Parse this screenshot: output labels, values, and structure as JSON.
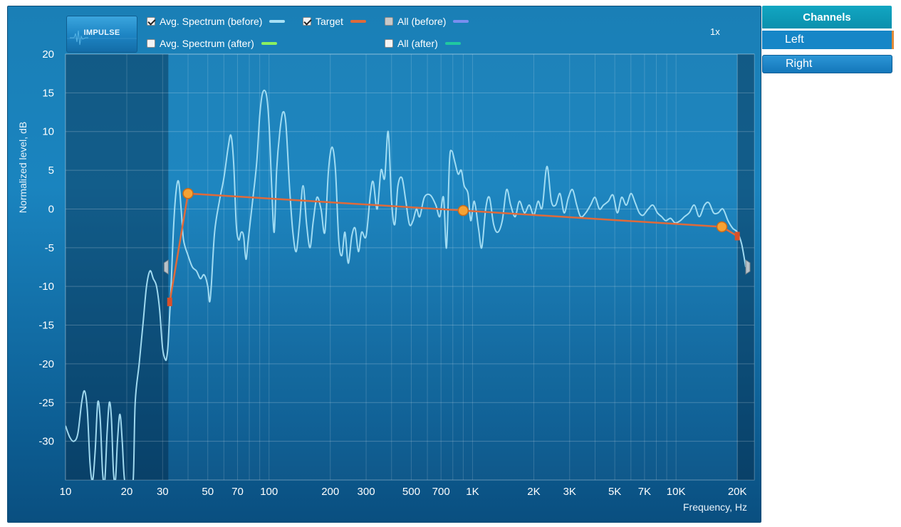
{
  "toolbar": {
    "impulse_label": "IMPULSE",
    "zoom": "1x"
  },
  "legend": [
    {
      "label": "Avg. Spectrum (before)",
      "checked": true,
      "state": "checked",
      "color": "#a8e0f5"
    },
    {
      "label": "Target",
      "checked": true,
      "state": "checked",
      "color": "#e06a3a"
    },
    {
      "label": "All (before)",
      "checked": false,
      "state": "partial",
      "color": "#7a8ef0"
    },
    {
      "label": "Avg. Spectrum (after)",
      "checked": false,
      "state": "unchecked",
      "color": "#8af060"
    },
    {
      "label": "All (after)",
      "checked": false,
      "state": "unchecked",
      "color": "#20c8a0"
    }
  ],
  "sidebar": {
    "header": "Channels",
    "channels": [
      {
        "label": "Left",
        "selected": true
      },
      {
        "label": "Right",
        "selected": false
      }
    ]
  },
  "chart_data": {
    "type": "line",
    "xlabel": "Frequency, Hz",
    "ylabel": "Normalized level, dB",
    "xscale": "log",
    "xlim": [
      10,
      22000
    ],
    "ylim": [
      -35,
      20
    ],
    "x_ticks": [
      10,
      20,
      30,
      50,
      70,
      100,
      200,
      300,
      500,
      700,
      1000,
      2000,
      3000,
      5000,
      7000,
      10000,
      20000
    ],
    "x_tick_labels": [
      "10",
      "20",
      "30",
      "50",
      "70",
      "100",
      "200",
      "300",
      "500",
      "700",
      "1K",
      "2K",
      "3K",
      "5K",
      "7K",
      "10K",
      "20K"
    ],
    "y_ticks": [
      20,
      15,
      10,
      5,
      0,
      -5,
      -10,
      -15,
      -20,
      -25,
      -30
    ],
    "y_tick_labels": [
      "20",
      "15",
      "10",
      "5",
      "0",
      "-5",
      "-10",
      "-15",
      "-20",
      "-25",
      "-30"
    ],
    "grid": true,
    "excluded_range_hz": [
      10,
      32
    ],
    "excluded_upper_hz": 20000,
    "series": [
      {
        "name": "Avg. Spectrum (before)",
        "color": "#a8e0f5",
        "points": [
          [
            10,
            -28
          ],
          [
            10.5,
            -29.5
          ],
          [
            11,
            -30
          ],
          [
            11.5,
            -29
          ],
          [
            12,
            -25
          ],
          [
            12.4,
            -23.5
          ],
          [
            12.8,
            -26
          ],
          [
            13.2,
            -33
          ],
          [
            13.6,
            -35
          ],
          [
            14,
            -31
          ],
          [
            14.4,
            -25
          ],
          [
            14.8,
            -27
          ],
          [
            15.2,
            -34
          ],
          [
            15.6,
            -35
          ],
          [
            16,
            -29
          ],
          [
            16.4,
            -25
          ],
          [
            16.8,
            -27
          ],
          [
            17.2,
            -34
          ],
          [
            17.6,
            -35
          ],
          [
            18,
            -30
          ],
          [
            18.5,
            -26.5
          ],
          [
            19,
            -30
          ],
          [
            19.5,
            -35
          ],
          [
            20.5,
            -36
          ],
          [
            21.5,
            -35
          ],
          [
            22,
            -25
          ],
          [
            23,
            -20
          ],
          [
            24,
            -15
          ],
          [
            25,
            -10
          ],
          [
            26,
            -8
          ],
          [
            27,
            -9
          ],
          [
            28,
            -10
          ],
          [
            29,
            -13
          ],
          [
            30,
            -18
          ],
          [
            31,
            -19.5
          ],
          [
            31.5,
            -19
          ],
          [
            32,
            -17
          ],
          [
            33,
            -10
          ],
          [
            34,
            -2
          ],
          [
            35,
            2.5
          ],
          [
            36,
            3.5
          ],
          [
            37,
            0
          ],
          [
            38,
            -4
          ],
          [
            40,
            -6
          ],
          [
            42,
            -7.5
          ],
          [
            44,
            -8
          ],
          [
            46,
            -9
          ],
          [
            48,
            -8.5
          ],
          [
            50,
            -10
          ],
          [
            51,
            -12
          ],
          [
            52,
            -10
          ],
          [
            54,
            -3
          ],
          [
            57,
            1
          ],
          [
            60,
            4
          ],
          [
            63,
            8
          ],
          [
            65,
            9.5
          ],
          [
            67,
            6
          ],
          [
            69,
            -2
          ],
          [
            71,
            -4
          ],
          [
            73,
            -3
          ],
          [
            75,
            -3.5
          ],
          [
            77,
            -6.5
          ],
          [
            79,
            -4
          ],
          [
            83,
            1
          ],
          [
            87,
            6
          ],
          [
            90,
            12
          ],
          [
            93,
            15
          ],
          [
            97,
            14.8
          ],
          [
            100,
            11
          ],
          [
            103,
            3
          ],
          [
            106,
            -3
          ],
          [
            109,
            5
          ],
          [
            113,
            10
          ],
          [
            117,
            12.5
          ],
          [
            121,
            11
          ],
          [
            126,
            3
          ],
          [
            131,
            -3
          ],
          [
            136,
            -5.5
          ],
          [
            141,
            -2
          ],
          [
            147,
            3
          ],
          [
            153,
            -2
          ],
          [
            159,
            -5
          ],
          [
            165,
            -1.5
          ],
          [
            172,
            1.5
          ],
          [
            180,
            0
          ],
          [
            188,
            -3
          ],
          [
            196,
            5
          ],
          [
            204,
            8
          ],
          [
            212,
            5
          ],
          [
            220,
            -4
          ],
          [
            228,
            -6
          ],
          [
            236,
            -3
          ],
          [
            245,
            -7
          ],
          [
            255,
            -3.5
          ],
          [
            265,
            -2.5
          ],
          [
            275,
            -5.5
          ],
          [
            285,
            -3
          ],
          [
            300,
            -3.5
          ],
          [
            315,
            2
          ],
          [
            325,
            3.5
          ],
          [
            340,
            0
          ],
          [
            355,
            5
          ],
          [
            370,
            4
          ],
          [
            385,
            10
          ],
          [
            400,
            1
          ],
          [
            415,
            -2
          ],
          [
            430,
            3
          ],
          [
            450,
            4
          ],
          [
            470,
            1
          ],
          [
            490,
            -2
          ],
          [
            510,
            -1.5
          ],
          [
            530,
            0
          ],
          [
            550,
            -1
          ],
          [
            580,
            1.5
          ],
          [
            620,
            1.8
          ],
          [
            660,
            0.5
          ],
          [
            690,
            -1
          ],
          [
            720,
            1.5
          ],
          [
            745,
            -5
          ],
          [
            770,
            6
          ],
          [
            790,
            7.5
          ],
          [
            820,
            6
          ],
          [
            850,
            4.5
          ],
          [
            880,
            5
          ],
          [
            910,
            3
          ],
          [
            950,
            2
          ],
          [
            980,
            -1.5
          ],
          [
            1020,
            1
          ],
          [
            1070,
            -2.5
          ],
          [
            1110,
            -5
          ],
          [
            1160,
            0
          ],
          [
            1210,
            1.5
          ],
          [
            1270,
            -2
          ],
          [
            1330,
            -3
          ],
          [
            1400,
            -1.5
          ],
          [
            1470,
            2.5
          ],
          [
            1540,
            0.5
          ],
          [
            1620,
            -1
          ],
          [
            1700,
            1
          ],
          [
            1800,
            -0.5
          ],
          [
            1900,
            0.5
          ],
          [
            2000,
            -0.8
          ],
          [
            2100,
            1
          ],
          [
            2200,
            0.2
          ],
          [
            2320,
            5.5
          ],
          [
            2440,
            1
          ],
          [
            2560,
            0.5
          ],
          [
            2690,
            2
          ],
          [
            2820,
            -0.5
          ],
          [
            2960,
            1.5
          ],
          [
            3100,
            2.5
          ],
          [
            3250,
            0.5
          ],
          [
            3400,
            -1
          ],
          [
            3600,
            -0.5
          ],
          [
            3800,
            0.5
          ],
          [
            4000,
            1.5
          ],
          [
            4200,
            0
          ],
          [
            4400,
            0.5
          ],
          [
            4650,
            1
          ],
          [
            4900,
            1.8
          ],
          [
            5150,
            -0.5
          ],
          [
            5400,
            1.5
          ],
          [
            5700,
            0.5
          ],
          [
            6000,
            2
          ],
          [
            6300,
            0.8
          ],
          [
            6600,
            -0.5
          ],
          [
            6900,
            -0.8
          ],
          [
            7300,
            0
          ],
          [
            7700,
            0.5
          ],
          [
            8100,
            -0.5
          ],
          [
            8500,
            -1
          ],
          [
            8900,
            -1.5
          ],
          [
            9400,
            -1.2
          ],
          [
            9900,
            -1.8
          ],
          [
            10500,
            -1.5
          ],
          [
            11000,
            -1
          ],
          [
            11600,
            -0.5
          ],
          [
            12300,
            0.5
          ],
          [
            13000,
            -1
          ],
          [
            13800,
            0.5
          ],
          [
            14500,
            0.8
          ],
          [
            15300,
            -0.5
          ],
          [
            16100,
            -0.5
          ],
          [
            17000,
            0
          ],
          [
            18000,
            -1.5
          ],
          [
            19000,
            -2.5
          ],
          [
            20000,
            -3
          ],
          [
            21000,
            -4.5
          ],
          [
            22000,
            -7.5
          ]
        ]
      },
      {
        "name": "Target",
        "color": "#e06a3a",
        "points": [
          [
            32.5,
            -12
          ],
          [
            40,
            2
          ],
          [
            900,
            -0.2
          ],
          [
            16800,
            -2.3
          ],
          [
            20000,
            -3.5
          ]
        ],
        "handles": [
          [
            40,
            2
          ],
          [
            900,
            -0.2
          ],
          [
            16800,
            -2.3
          ]
        ],
        "end_markers": [
          [
            32.5,
            -12
          ],
          [
            20000,
            -3.5
          ]
        ]
      }
    ]
  }
}
